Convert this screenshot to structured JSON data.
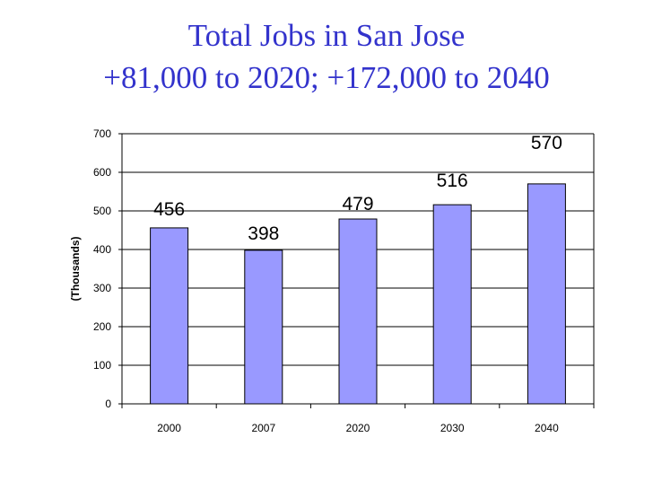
{
  "title_line1": "Total Jobs in San Jose",
  "title_line2": "+81,000 to 2020; +172,000 to 2040",
  "colors": {
    "title": "#3333cc",
    "bar": "#9999ff"
  },
  "chart_data": {
    "type": "bar",
    "categories": [
      "2000",
      "2007",
      "2020",
      "2030",
      "2040"
    ],
    "values": [
      456,
      398,
      479,
      516,
      570
    ],
    "data_labels": [
      "456",
      "398",
      "479",
      "516",
      "570"
    ],
    "ylabel": "(Thousands)",
    "xlabel": "",
    "ylim": [
      0,
      700
    ],
    "yticks": [
      "0",
      "100",
      "200",
      "300",
      "400",
      "500",
      "600",
      "700"
    ],
    "grid": true,
    "legend": "none"
  }
}
